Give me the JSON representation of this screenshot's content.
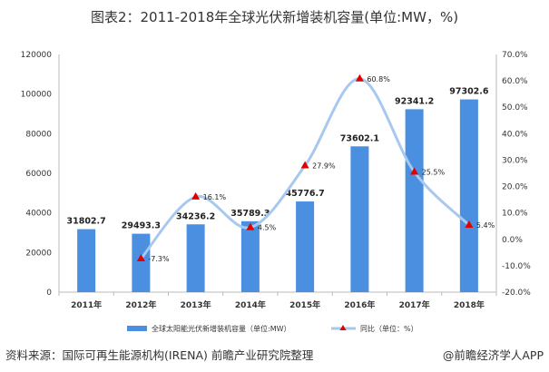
{
  "title": "图表2：2011-2018年全球光伏新增装机容量(单位:MW，%)",
  "source": "资料来源：国际可再生能源机构(IRENA) 前瞻产业研究院整理",
  "credit": "@前瞻经济学人APP",
  "chart_data": {
    "type": "bar+line",
    "title": "图表2：2011-2018年全球光伏新增装机容量(单位:MW，%)",
    "categories": [
      "2011年",
      "2012年",
      "2013年",
      "2014年",
      "2015年",
      "2016年",
      "2017年",
      "2018年"
    ],
    "series": [
      {
        "name": "全球太阳能光伏新增装机容量（单位:MW）",
        "type": "bar",
        "axis": "left",
        "color": "#4a8fe0",
        "values": [
          31802.7,
          29493.3,
          34236.2,
          35789.3,
          45776.7,
          73602.1,
          92341.2,
          97302.6
        ],
        "labels": [
          "31802.7",
          "29493.3",
          "34236.2",
          "35789.3",
          "45776.7",
          "73602.1",
          "92341.2",
          "97302.6"
        ]
      },
      {
        "name": "同比（单位：%）",
        "type": "line",
        "axis": "right",
        "color": "#a8c8f0",
        "marker_color": "#e00000",
        "marker": "triangle",
        "values": [
          null,
          -7.3,
          16.1,
          4.5,
          27.9,
          60.8,
          25.5,
          5.4
        ],
        "labels": [
          "",
          "-7.3%",
          "16.1%",
          "4.5%",
          "27.9%",
          "60.8%",
          "25.5%",
          "5.4%"
        ]
      }
    ],
    "left_axis": {
      "min": 0,
      "max": 120000,
      "ticks": [
        "0",
        "20000",
        "40000",
        "60000",
        "80000",
        "100000",
        "120000"
      ]
    },
    "right_axis": {
      "min": -20,
      "max": 70,
      "ticks": [
        "-20.0%",
        "-10.0%",
        "0.0%",
        "10.0%",
        "20.0%",
        "30.0%",
        "40.0%",
        "50.0%",
        "60.0%",
        "70.0%"
      ]
    },
    "grid": false,
    "legend": "bottom"
  }
}
